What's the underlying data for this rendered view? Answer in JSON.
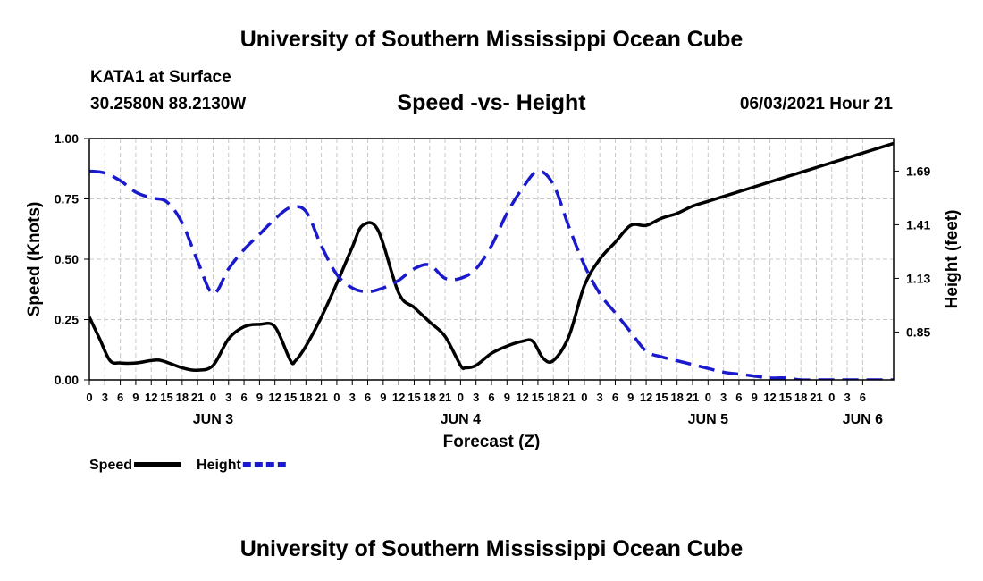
{
  "header": {
    "title": "University of Southern Mississippi Ocean Cube",
    "station": "KATA1 at Surface",
    "coords": "30.2580N  88.2130W",
    "subtitle": "Speed -vs- Height",
    "datetime": "06/03/2021 Hour 21"
  },
  "footer": {
    "title": "University of Southern Mississippi Ocean Cube"
  },
  "chart_data": {
    "type": "line",
    "xlabel": "Forecast (Z)",
    "ylabel_left": "Speed (Knots)",
    "ylabel_right": "Height (feet)",
    "x_hours": [
      0,
      156
    ],
    "x_tick_labels": [
      "0",
      "3",
      "6",
      "9",
      "12",
      "15",
      "18",
      "21",
      "0",
      "3",
      "6",
      "9",
      "12",
      "15",
      "18",
      "21",
      "0",
      "3",
      "6",
      "9",
      "12",
      "15",
      "18",
      "21",
      "0",
      "3",
      "6",
      "9",
      "12",
      "15",
      "18",
      "21",
      "0",
      "3",
      "6",
      "9",
      "12",
      "15",
      "18",
      "21",
      "0",
      "3",
      "6",
      "9",
      "12",
      "15",
      "18",
      "21",
      "0",
      "3",
      "6"
    ],
    "day_labels": [
      {
        "hour": 24,
        "label": "JUN 3"
      },
      {
        "hour": 72,
        "label": "JUN 4"
      },
      {
        "hour": 120,
        "label": "JUN 5"
      },
      {
        "hour": 150,
        "label": "JUN 6"
      }
    ],
    "ylim_left": [
      0,
      1
    ],
    "yticks_left": [
      "0.00",
      "0.25",
      "0.50",
      "0.75",
      "1.00"
    ],
    "ylim_right": [
      0.6,
      1.86
    ],
    "yticks_right": [
      {
        "value": 0.85,
        "label": "0.85"
      },
      {
        "value": 1.13,
        "label": "1.13"
      },
      {
        "value": 1.41,
        "label": "1.41"
      },
      {
        "value": 1.69,
        "label": "1.69"
      }
    ],
    "grid": true,
    "legend_position": "bottom-left",
    "series": [
      {
        "name": "Speed",
        "axis": "left",
        "color": "#000000",
        "dash": false,
        "points": [
          [
            0,
            0.26
          ],
          [
            2,
            0.17
          ],
          [
            4,
            0.08
          ],
          [
            6,
            0.07
          ],
          [
            9,
            0.07
          ],
          [
            12,
            0.08
          ],
          [
            14,
            0.08
          ],
          [
            18,
            0.05
          ],
          [
            21,
            0.04
          ],
          [
            24,
            0.06
          ],
          [
            27,
            0.17
          ],
          [
            30,
            0.22
          ],
          [
            33,
            0.23
          ],
          [
            36,
            0.22
          ],
          [
            39,
            0.08
          ],
          [
            40,
            0.08
          ],
          [
            42,
            0.14
          ],
          [
            45,
            0.26
          ],
          [
            48,
            0.4
          ],
          [
            51,
            0.55
          ],
          [
            53,
            0.64
          ],
          [
            56,
            0.62
          ],
          [
            60,
            0.36
          ],
          [
            63,
            0.3
          ],
          [
            66,
            0.24
          ],
          [
            69,
            0.18
          ],
          [
            72,
            0.06
          ],
          [
            73,
            0.05
          ],
          [
            75,
            0.06
          ],
          [
            78,
            0.11
          ],
          [
            81,
            0.14
          ],
          [
            84,
            0.16
          ],
          [
            86,
            0.16
          ],
          [
            88,
            0.09
          ],
          [
            90,
            0.08
          ],
          [
            93,
            0.18
          ],
          [
            96,
            0.39
          ],
          [
            99,
            0.5
          ],
          [
            102,
            0.57
          ],
          [
            105,
            0.64
          ],
          [
            108,
            0.64
          ],
          [
            111,
            0.67
          ],
          [
            114,
            0.69
          ],
          [
            117,
            0.72
          ],
          [
            120,
            0.74
          ],
          [
            123,
            0.76
          ],
          [
            126,
            0.78
          ],
          [
            129,
            0.8
          ],
          [
            132,
            0.82
          ],
          [
            135,
            0.84
          ],
          [
            138,
            0.86
          ],
          [
            141,
            0.88
          ],
          [
            144,
            0.9
          ],
          [
            147,
            0.92
          ],
          [
            150,
            0.94
          ],
          [
            153,
            0.96
          ],
          [
            156,
            0.98
          ]
        ]
      },
      {
        "name": "Height",
        "axis": "right",
        "color": "#1a1acc",
        "dash": true,
        "points": [
          [
            0,
            1.69
          ],
          [
            3,
            1.68
          ],
          [
            6,
            1.64
          ],
          [
            9,
            1.58
          ],
          [
            12,
            1.55
          ],
          [
            15,
            1.53
          ],
          [
            18,
            1.42
          ],
          [
            21,
            1.22
          ],
          [
            24,
            1.05
          ],
          [
            27,
            1.18
          ],
          [
            30,
            1.28
          ],
          [
            33,
            1.36
          ],
          [
            36,
            1.44
          ],
          [
            39,
            1.5
          ],
          [
            42,
            1.48
          ],
          [
            45,
            1.3
          ],
          [
            48,
            1.15
          ],
          [
            51,
            1.08
          ],
          [
            54,
            1.06
          ],
          [
            57,
            1.08
          ],
          [
            60,
            1.12
          ],
          [
            63,
            1.18
          ],
          [
            66,
            1.2
          ],
          [
            69,
            1.13
          ],
          [
            72,
            1.13
          ],
          [
            75,
            1.18
          ],
          [
            78,
            1.3
          ],
          [
            81,
            1.47
          ],
          [
            84,
            1.6
          ],
          [
            87,
            1.69
          ],
          [
            90,
            1.62
          ],
          [
            93,
            1.4
          ],
          [
            96,
            1.2
          ],
          [
            99,
            1.05
          ],
          [
            102,
            0.95
          ],
          [
            105,
            0.85
          ],
          [
            108,
            0.75
          ],
          [
            111,
            0.72
          ],
          [
            114,
            0.7
          ],
          [
            117,
            0.68
          ],
          [
            120,
            0.66
          ],
          [
            123,
            0.64
          ],
          [
            126,
            0.63
          ],
          [
            129,
            0.62
          ],
          [
            132,
            0.61
          ],
          [
            135,
            0.61
          ],
          [
            138,
            0.6
          ],
          [
            141,
            0.6
          ],
          [
            144,
            0.6
          ],
          [
            147,
            0.6
          ],
          [
            150,
            0.6
          ],
          [
            153,
            0.6
          ],
          [
            156,
            0.6
          ]
        ]
      }
    ]
  }
}
